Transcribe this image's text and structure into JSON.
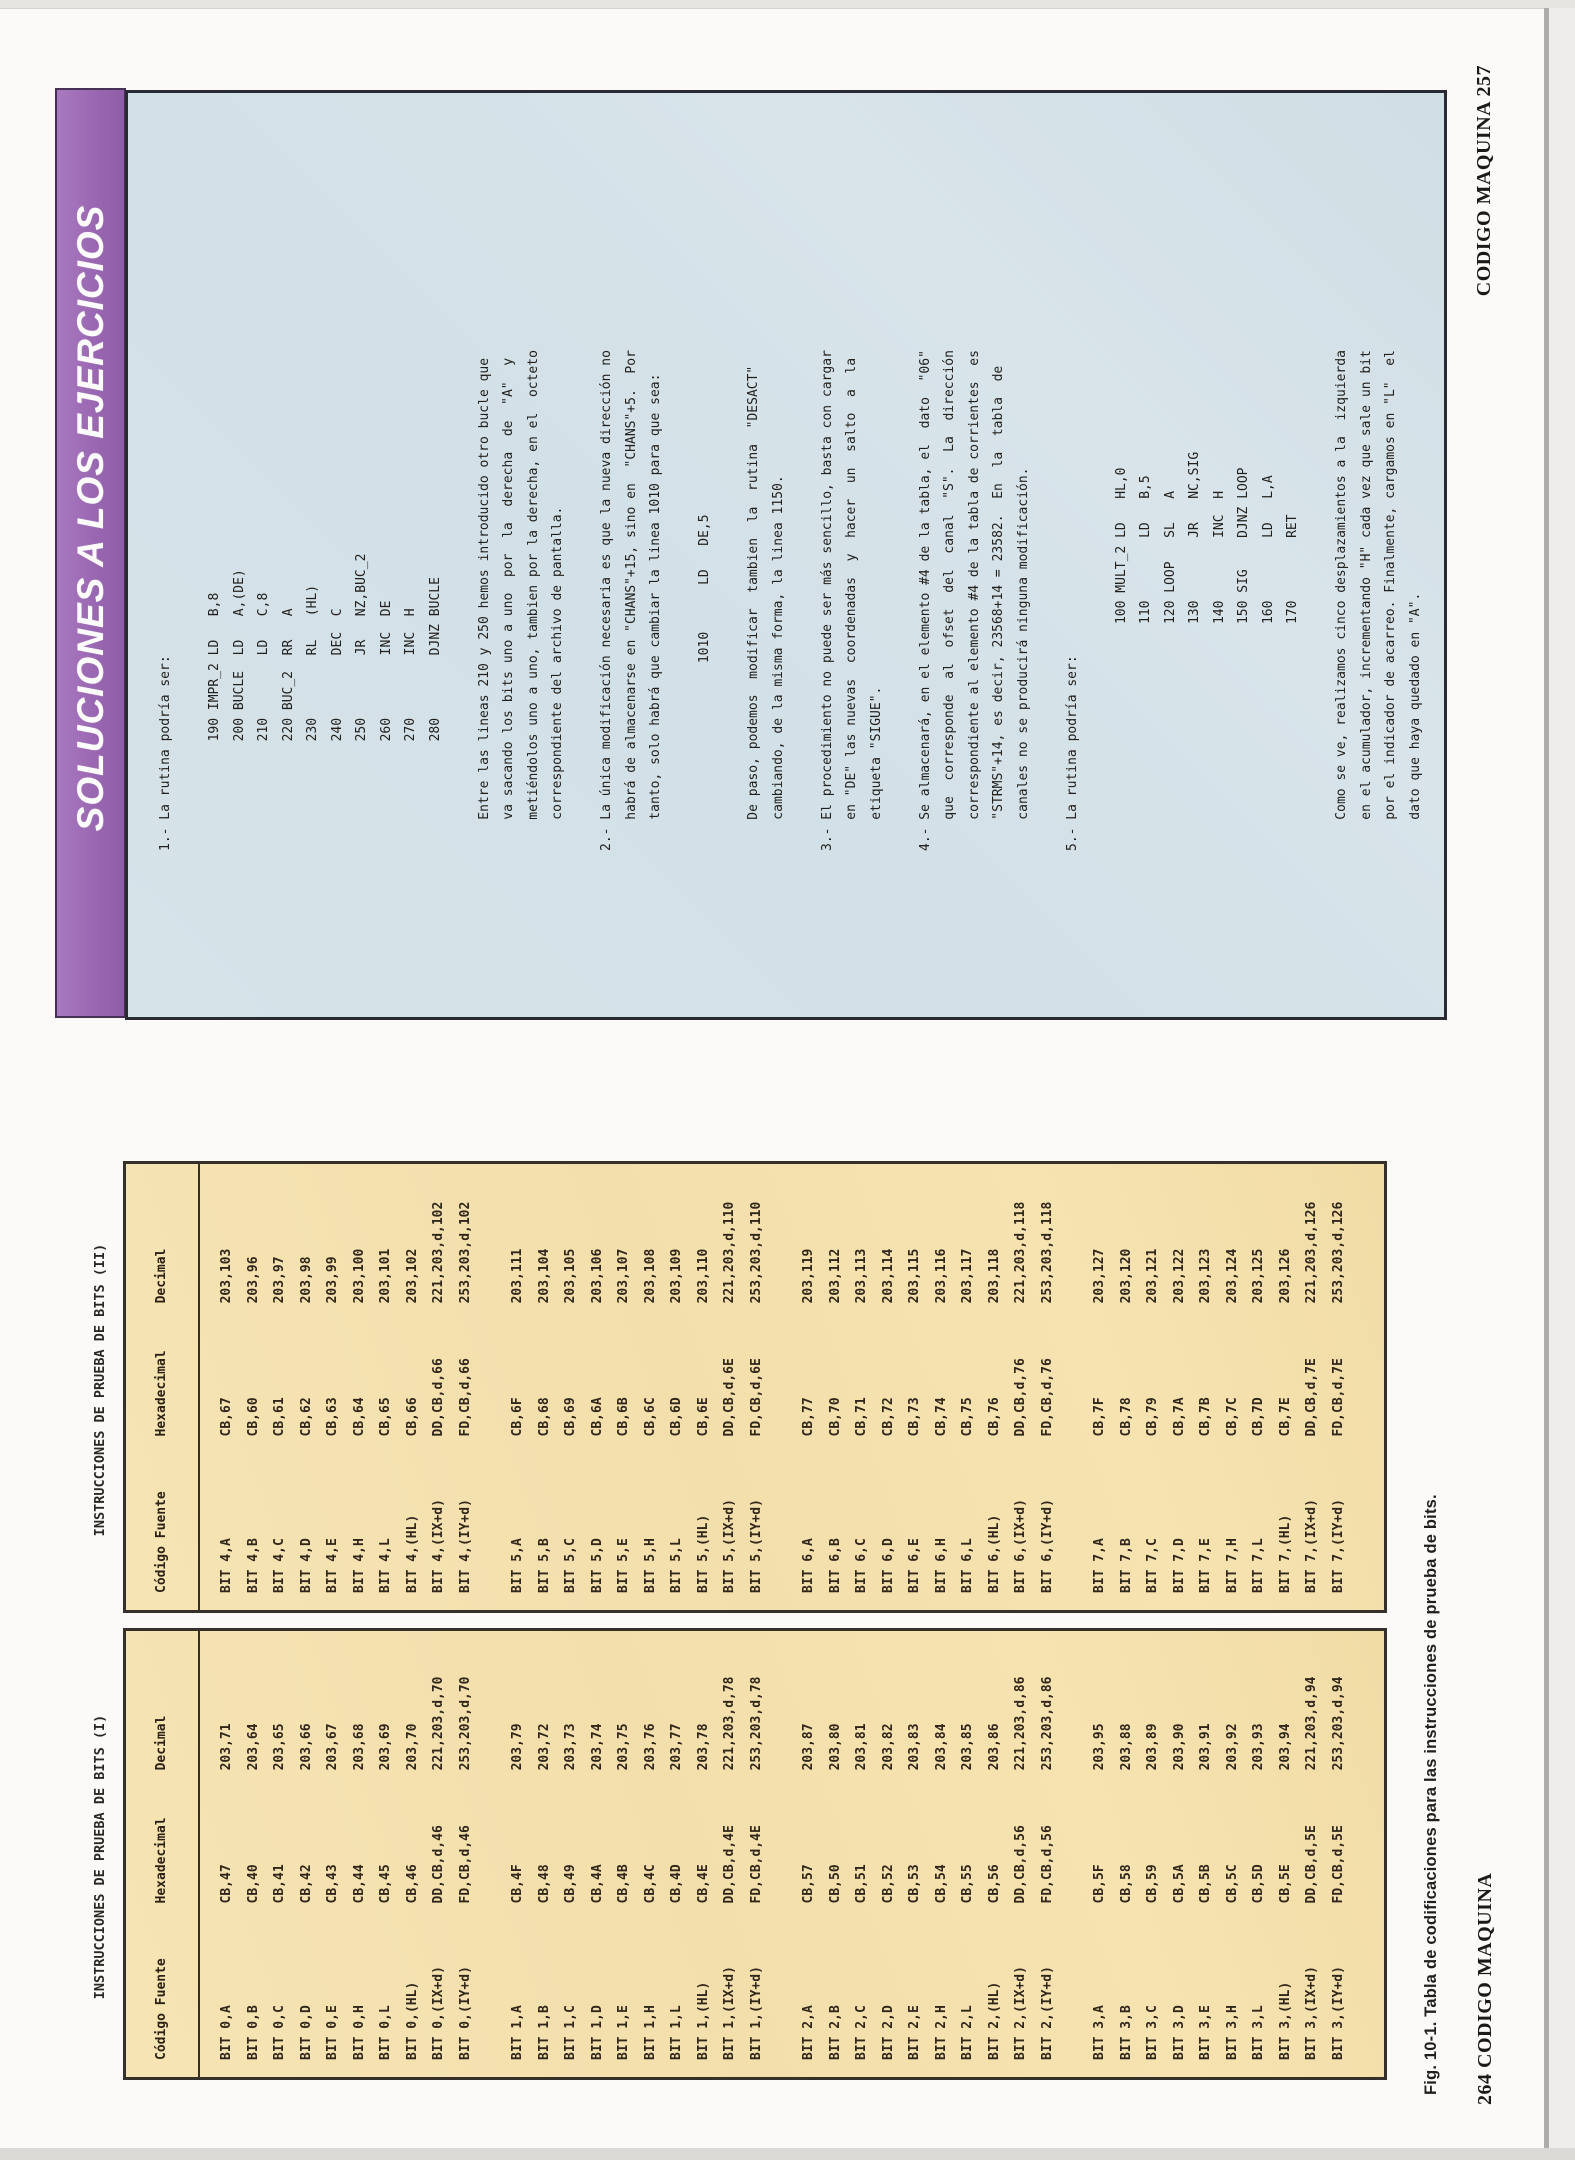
{
  "solutions_page": {
    "banner_title": "SOLUCIONES A LOS EJERCICIOS",
    "body_lines": [
      "1.- La rutina podría ser:",
      "",
      "              190 IMPR_2 LD   B,8",
      "              200 BUCLE  LD   A,(DE)",
      "              210        LD   C,8",
      "              220 BUC_2  RR   A",
      "              230        RL   (HL)",
      "              240        DEC  C",
      "              250        JR   NZ,BUC_2",
      "              260        INC  DE",
      "              270        INC  H",
      "              280        DJNZ BUCLE",
      "",
      "    Entre las lineas 210 y 250 hemos introducido otro bucle que",
      "    va sacando los bits uno a uno  por  la  derecha  de  \"A\"  y",
      "    metiéndolos uno a uno, tambien por la derecha, en el  octeto",
      "    correspondiente del archivo de pantalla.",
      "",
      "2.- La única modificación necesaria es que la nueva dirección no",
      "    habrá de almacenarse en \"CHANS\"+15, sino en  \"CHANS\"+5.  Por",
      "    tanto, solo habrá que cambiar la linea 1010 para que sea:",
      "",
      "                        1010      LD   DE,5",
      "",
      "    De paso, podemos  modificar  tambien  la  rutina  \"DESACT\"",
      "    cambiando, de la misma forma, la linea 1150.",
      "",
      "3.- El procedimiento no puede ser más sencillo, basta con cargar",
      "    en \"DE\" las nuevas  coordenadas  y  hacer  un  salto  a  la",
      "    etiqueta \"SIGUE\".",
      "",
      "4.- Se almacenará, en el elemento #4 de la tabla, el  dato  \"06\"",
      "    que  corresponde  al  ofset  del  canal  \"S\".  La  dirección",
      "    correspondiente al elemento #4 de la tabla de corrientes  es",
      "    \"STRMS\"+14, es decir, 23568+14 = 23582.  En  la  tabla  de",
      "    canales no se producirá ninguna modificación.",
      "",
      "5.- La rutina podría ser:",
      "",
      "                             100 MULT_2 LD   HL,0",
      "                             110        LD   B,5",
      "                             120 LOOP   SL   A",
      "                             130        JR   NC,SIG",
      "                             140        INC  H",
      "                             150 SIG    DJNZ LOOP",
      "                             160        LD   L,A",
      "                             170        RET",
      "",
      "    Como se ve, realizamos cinco desplazamientos a la  izquierda",
      "    en el acumulador, incrementando \"H\" cada vez que sale un bit",
      "    por el indicador de acarreo. Finalmente, cargamos en \"L\"  el",
      "    dato que haya quedado en \"A\"."
    ],
    "footer": "CODIGO MAQUINA 257"
  },
  "tables_page": {
    "table1_label": "INSTRUCCIONES DE PRUEBA DE BITS (I)",
    "table2_label": "INSTRUCCIONES DE PRUEBA DE BITS (II)",
    "columns": [
      "Código Fuente",
      "Hexadecimal",
      "Decimal"
    ],
    "table1_groups": [
      {
        "rows": [
          [
            "BIT 0,A",
            "CB,47",
            "203,71"
          ],
          [
            "BIT 0,B",
            "CB,40",
            "203,64"
          ],
          [
            "BIT 0,C",
            "CB,41",
            "203,65"
          ],
          [
            "BIT 0,D",
            "CB,42",
            "203,66"
          ],
          [
            "BIT 0,E",
            "CB,43",
            "203,67"
          ],
          [
            "BIT 0,H",
            "CB,44",
            "203,68"
          ],
          [
            "BIT 0,L",
            "CB,45",
            "203,69"
          ],
          [
            "BIT 0,(HL)",
            "CB,46",
            "203,70"
          ],
          [
            "BIT 0,(IX+d)",
            "DD,CB,d,46",
            "221,203,d,70"
          ],
          [
            "BIT 0,(IY+d)",
            "FD,CB,d,46",
            "253,203,d,70"
          ]
        ]
      },
      {
        "rows": [
          [
            "BIT 1,A",
            "CB,4F",
            "203,79"
          ],
          [
            "BIT 1,B",
            "CB,48",
            "203,72"
          ],
          [
            "BIT 1,C",
            "CB,49",
            "203,73"
          ],
          [
            "BIT 1,D",
            "CB,4A",
            "203,74"
          ],
          [
            "BIT 1,E",
            "CB,4B",
            "203,75"
          ],
          [
            "BIT 1,H",
            "CB,4C",
            "203,76"
          ],
          [
            "BIT 1,L",
            "CB,4D",
            "203,77"
          ],
          [
            "BIT 1,(HL)",
            "CB,4E",
            "203,78"
          ],
          [
            "BIT 1,(IX+d)",
            "DD,CB,d,4E",
            "221,203,d,78"
          ],
          [
            "BIT 1,(IY+d)",
            "FD,CB,d,4E",
            "253,203,d,78"
          ]
        ]
      },
      {
        "rows": [
          [
            "BIT 2,A",
            "CB,57",
            "203,87"
          ],
          [
            "BIT 2,B",
            "CB,50",
            "203,80"
          ],
          [
            "BIT 2,C",
            "CB,51",
            "203,81"
          ],
          [
            "BIT 2,D",
            "CB,52",
            "203,82"
          ],
          [
            "BIT 2,E",
            "CB,53",
            "203,83"
          ],
          [
            "BIT 2,H",
            "CB,54",
            "203,84"
          ],
          [
            "BIT 2,L",
            "CB,55",
            "203,85"
          ],
          [
            "BIT 2,(HL)",
            "CB,56",
            "203,86"
          ],
          [
            "BIT 2,(IX+d)",
            "DD,CB,d,56",
            "221,203,d,86"
          ],
          [
            "BIT 2,(IY+d)",
            "FD,CB,d,56",
            "253,203,d,86"
          ]
        ]
      },
      {
        "rows": [
          [
            "BIT 3,A",
            "CB,5F",
            "203,95"
          ],
          [
            "BIT 3,B",
            "CB,58",
            "203,88"
          ],
          [
            "BIT 3,C",
            "CB,59",
            "203,89"
          ],
          [
            "BIT 3,D",
            "CB,5A",
            "203,90"
          ],
          [
            "BIT 3,E",
            "CB,5B",
            "203,91"
          ],
          [
            "BIT 3,H",
            "CB,5C",
            "203,92"
          ],
          [
            "BIT 3,L",
            "CB,5D",
            "203,93"
          ],
          [
            "BIT 3,(HL)",
            "CB,5E",
            "203,94"
          ],
          [
            "BIT 3,(IX+d)",
            "DD,CB,d,5E",
            "221,203,d,94"
          ],
          [
            "BIT 3,(IY+d)",
            "FD,CB,d,5E",
            "253,203,d,94"
          ]
        ]
      }
    ],
    "table2_groups": [
      {
        "rows": [
          [
            "BIT 4,A",
            "CB,67",
            "203,103"
          ],
          [
            "BIT 4,B",
            "CB,60",
            "203,96"
          ],
          [
            "BIT 4,C",
            "CB,61",
            "203,97"
          ],
          [
            "BIT 4,D",
            "CB,62",
            "203,98"
          ],
          [
            "BIT 4,E",
            "CB,63",
            "203,99"
          ],
          [
            "BIT 4,H",
            "CB,64",
            "203,100"
          ],
          [
            "BIT 4,L",
            "CB,65",
            "203,101"
          ],
          [
            "BIT 4,(HL)",
            "CB,66",
            "203,102"
          ],
          [
            "BIT 4,(IX+d)",
            "DD,CB,d,66",
            "221,203,d,102"
          ],
          [
            "BIT 4,(IY+d)",
            "FD,CB,d,66",
            "253,203,d,102"
          ]
        ]
      },
      {
        "rows": [
          [
            "BIT 5,A",
            "CB,6F",
            "203,111"
          ],
          [
            "BIT 5,B",
            "CB,68",
            "203,104"
          ],
          [
            "BIT 5,C",
            "CB,69",
            "203,105"
          ],
          [
            "BIT 5,D",
            "CB,6A",
            "203,106"
          ],
          [
            "BIT 5,E",
            "CB,6B",
            "203,107"
          ],
          [
            "BIT 5,H",
            "CB,6C",
            "203,108"
          ],
          [
            "BIT 5,L",
            "CB,6D",
            "203,109"
          ],
          [
            "BIT 5,(HL)",
            "CB,6E",
            "203,110"
          ],
          [
            "BIT 5,(IX+d)",
            "DD,CB,d,6E",
            "221,203,d,110"
          ],
          [
            "BIT 5,(IY+d)",
            "FD,CB,d,6E",
            "253,203,d,110"
          ]
        ]
      },
      {
        "rows": [
          [
            "BIT 6,A",
            "CB,77",
            "203,119"
          ],
          [
            "BIT 6,B",
            "CB,70",
            "203,112"
          ],
          [
            "BIT 6,C",
            "CB,71",
            "203,113"
          ],
          [
            "BIT 6,D",
            "CB,72",
            "203,114"
          ],
          [
            "BIT 6,E",
            "CB,73",
            "203,115"
          ],
          [
            "BIT 6,H",
            "CB,74",
            "203,116"
          ],
          [
            "BIT 6,L",
            "CB,75",
            "203,117"
          ],
          [
            "BIT 6,(HL)",
            "CB,76",
            "203,118"
          ],
          [
            "BIT 6,(IX+d)",
            "DD,CB,d,76",
            "221,203,d,118"
          ],
          [
            "BIT 6,(IY+d)",
            "FD,CB,d,76",
            "253,203,d,118"
          ]
        ]
      },
      {
        "rows": [
          [
            "BIT 7,A",
            "CB,7F",
            "203,127"
          ],
          [
            "BIT 7,B",
            "CB,78",
            "203,120"
          ],
          [
            "BIT 7,C",
            "CB,79",
            "203,121"
          ],
          [
            "BIT 7,D",
            "CB,7A",
            "203,122"
          ],
          [
            "BIT 7,E",
            "CB,7B",
            "203,123"
          ],
          [
            "BIT 7,H",
            "CB,7C",
            "203,124"
          ],
          [
            "BIT 7,L",
            "CB,7D",
            "203,125"
          ],
          [
            "BIT 7,(HL)",
            "CB,7E",
            "203,126"
          ],
          [
            "BIT 7,(IX+d)",
            "DD,CB,d,7E",
            "221,203,d,126"
          ],
          [
            "BIT 7,(IY+d)",
            "FD,CB,d,7E",
            "253,203,d,126"
          ]
        ]
      }
    ],
    "caption": "Fig. 10-1. Tabla de codificaciones para las instrucciones de prueba de bits.",
    "footer": "264 CODIGO MAQUINA"
  },
  "colors": {
    "banner_purple": "#9a68b2",
    "solutions_panel_blue": "#d3e1e8",
    "table_panel_tan": "#f4e1ae",
    "border_dark": "#2a2a33",
    "text": "#22201c"
  }
}
